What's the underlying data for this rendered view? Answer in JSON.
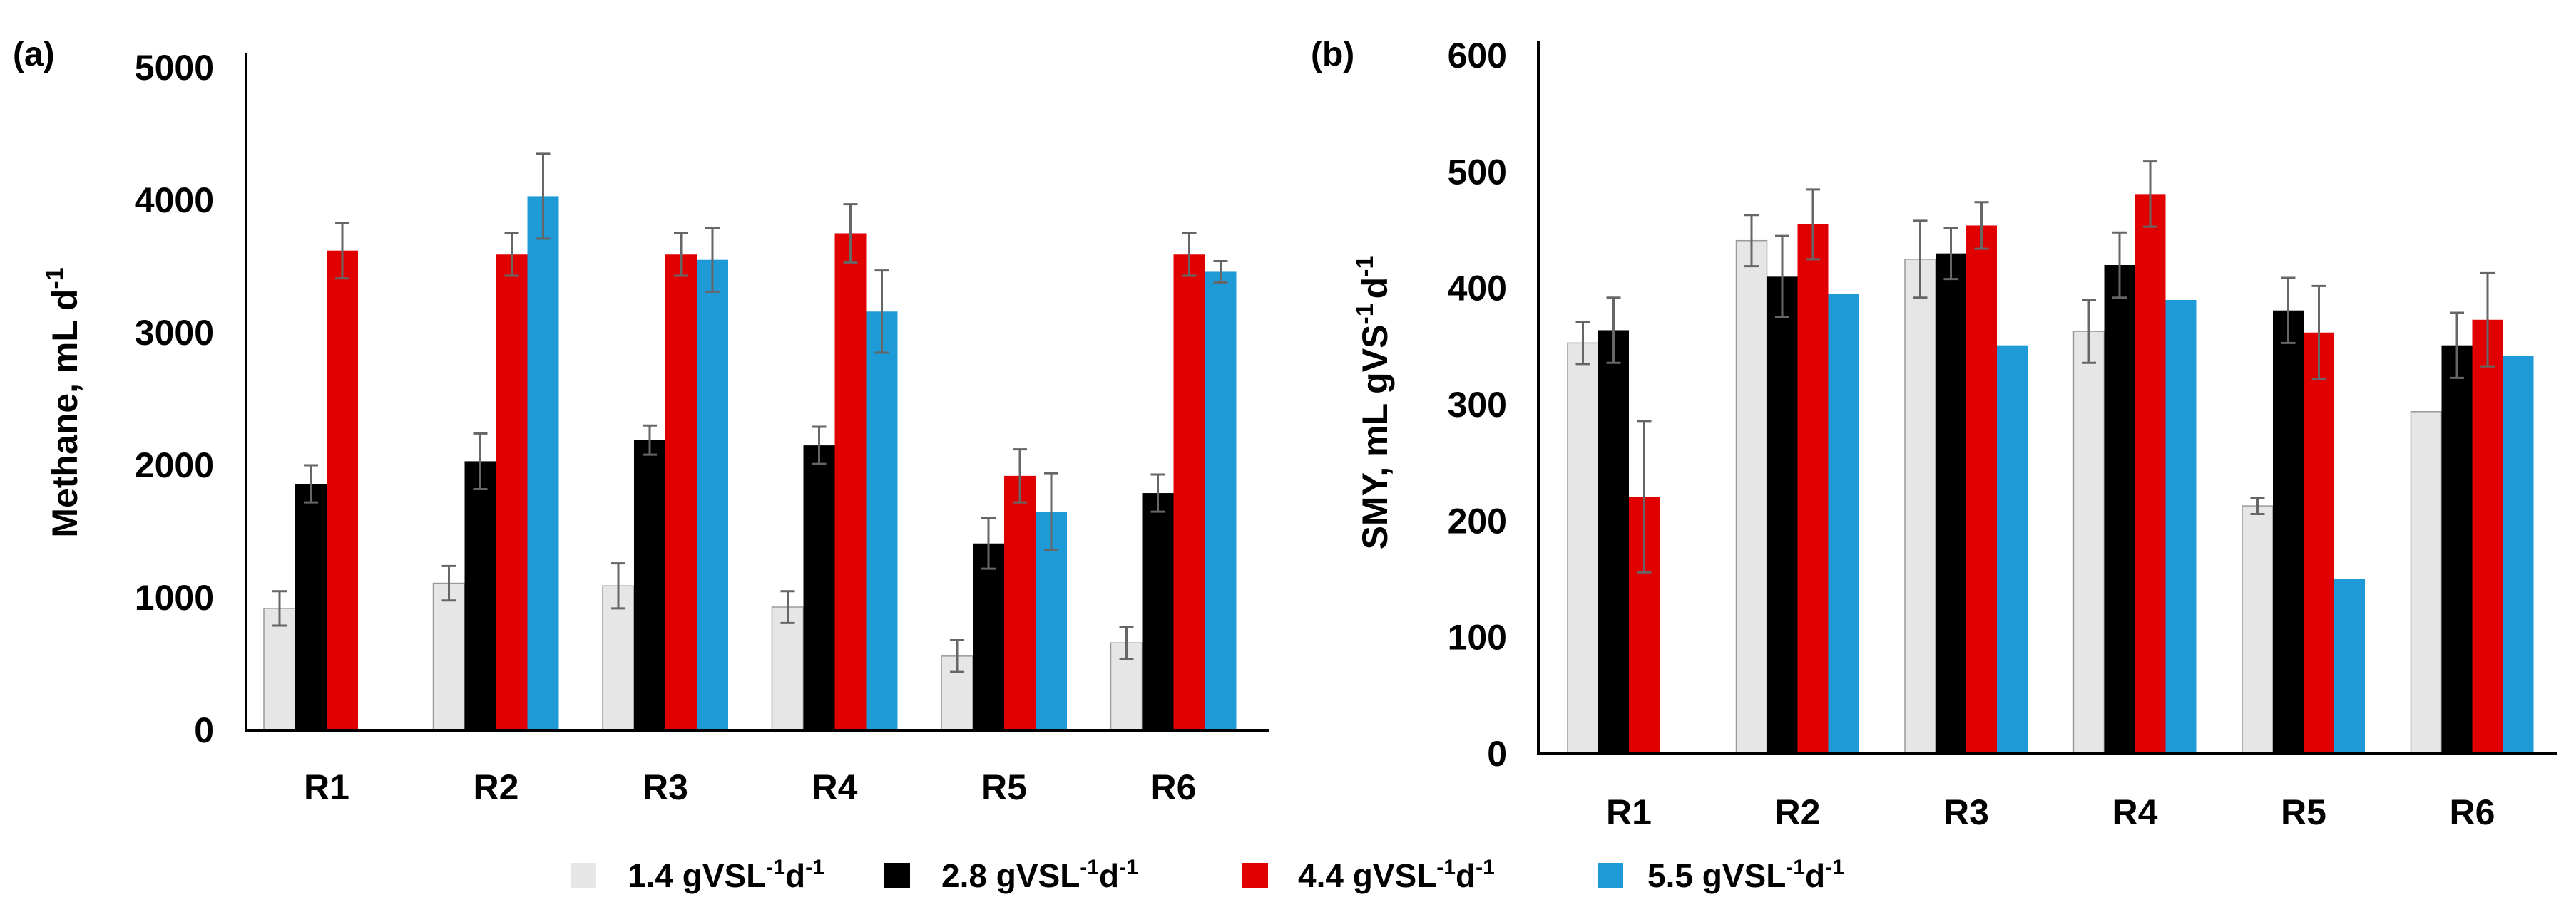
{
  "legend": [
    {
      "name": "1.4 gVSL",
      "sup1": "-1",
      "mid": "d",
      "sup2": "-1",
      "color": "#e6e6e6"
    },
    {
      "name": "2.8 gVSL",
      "sup1": "-1",
      "mid": "d",
      "sup2": "-1",
      "color": "#000000"
    },
    {
      "name": "4.4 gVSL",
      "sup1": "-1",
      "mid": "d",
      "sup2": "-1",
      "color": "#e00000"
    },
    {
      "name": "5.5 gVSL",
      "sup1": "-1",
      "mid": "d",
      "sup2": "-1",
      "color": "#1e9bd7"
    }
  ],
  "chart_data": [
    {
      "panel_label": "(a)",
      "type": "bar",
      "ylabel": {
        "main": "Methane, mL d",
        "sup": "-1"
      },
      "ylim": [
        0,
        5000
      ],
      "yticks": [
        0,
        1000,
        2000,
        3000,
        4000,
        5000
      ],
      "categories": [
        "R1",
        "R2",
        "R3",
        "R4",
        "R5",
        "R6"
      ],
      "series": [
        {
          "name": "1.4 gVSL-1d-1",
          "color": "#e6e6e6",
          "values": [
            920,
            1110,
            1090,
            930,
            560,
            660
          ],
          "errors": [
            130,
            130,
            170,
            120,
            120,
            120
          ]
        },
        {
          "name": "2.8 gVSL-1d-1",
          "color": "#000000",
          "values": [
            1860,
            2030,
            2190,
            2150,
            1410,
            1790
          ],
          "errors": [
            140,
            210,
            110,
            140,
            190,
            140
          ]
        },
        {
          "name": "4.4 gVSL-1d-1",
          "color": "#e00000",
          "values": [
            3620,
            3590,
            3590,
            3750,
            1920,
            3590
          ],
          "errors": [
            210,
            160,
            160,
            220,
            200,
            160
          ]
        },
        {
          "name": "5.5 gVSL-1d-1",
          "color": "#1e9bd7",
          "values": [
            null,
            4030,
            3550,
            3160,
            1650,
            3460
          ],
          "errors": [
            null,
            320,
            240,
            310,
            290,
            80
          ]
        }
      ]
    },
    {
      "panel_label": "(b)",
      "type": "bar",
      "ylabel": {
        "a": "SMY, mL gVS",
        "sup1": "-1",
        "b": "d",
        "sup2": "-1"
      },
      "ylim": [
        0,
        600
      ],
      "yticks": [
        0,
        100,
        200,
        300,
        400,
        500,
        600
      ],
      "categories": [
        "R1",
        "R2",
        "R3",
        "R4",
        "R5",
        "R6"
      ],
      "series": [
        {
          "name": "1.4 gVSL-1d-1",
          "color": "#e6e6e6",
          "values": [
            353,
            441,
            425,
            363,
            213,
            294
          ],
          "errors": [
            18,
            22,
            33,
            27,
            7,
            0
          ]
        },
        {
          "name": "2.8 gVSL-1d-1",
          "color": "#000000",
          "values": [
            364,
            410,
            430,
            420,
            381,
            351
          ],
          "errors": [
            28,
            35,
            22,
            28,
            28,
            28
          ]
        },
        {
          "name": "4.4 gVSL-1d-1",
          "color": "#e00000",
          "values": [
            221,
            455,
            454,
            481,
            362,
            373
          ],
          "errors": [
            65,
            30,
            20,
            28,
            40,
            40
          ]
        },
        {
          "name": "5.5 gVSL-1d-1",
          "color": "#1e9bd7",
          "values": [
            null,
            395,
            351,
            390,
            150,
            342
          ],
          "errors": [
            null,
            0,
            0,
            0,
            0,
            0
          ]
        }
      ]
    }
  ]
}
